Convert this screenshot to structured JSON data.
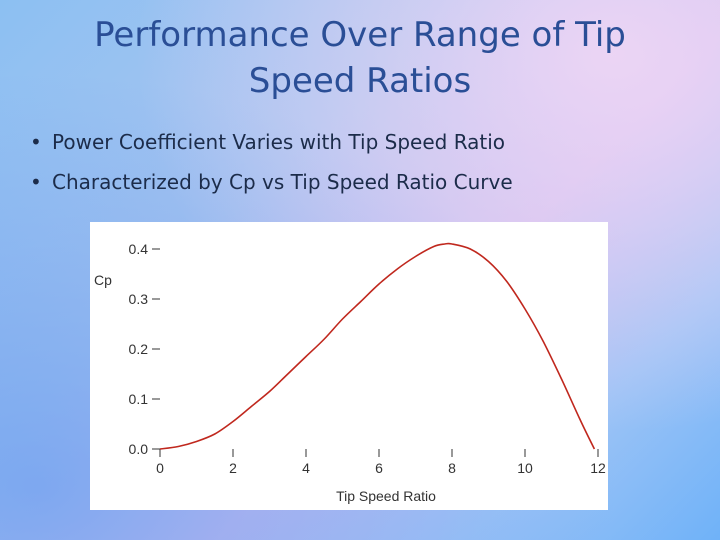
{
  "slide": {
    "title": "Performance Over Range of Tip Speed Ratios",
    "bullets": [
      "Power Coefficient Varies with Tip Speed Ratio",
      "Characterized by Cp vs Tip Speed Ratio Curve"
    ]
  },
  "chart_data": {
    "type": "line",
    "title": "",
    "xlabel": "Tip Speed Ratio",
    "ylabel": "Cp",
    "xlim": [
      0,
      12
    ],
    "ylim": [
      0,
      0.4
    ],
    "x_ticks": [
      "0",
      "2",
      "4",
      "6",
      "8",
      "10",
      "12"
    ],
    "y_ticks": [
      "0.0",
      "0.1",
      "0.2",
      "0.3",
      "0.4"
    ],
    "grid": false,
    "legend": "none",
    "series": [
      {
        "color": "#c0281e",
        "x": [
          0,
          0.5,
          1,
          1.5,
          2,
          2.5,
          3,
          3.5,
          4,
          4.5,
          5,
          5.5,
          6,
          6.5,
          7,
          7.5,
          7.8,
          8,
          8.5,
          9,
          9.5,
          10,
          10.5,
          11,
          11.5,
          11.9
        ],
        "y": [
          0.0,
          0.005,
          0.015,
          0.03,
          0.055,
          0.085,
          0.115,
          0.15,
          0.185,
          0.22,
          0.26,
          0.295,
          0.33,
          0.36,
          0.385,
          0.405,
          0.41,
          0.41,
          0.4,
          0.375,
          0.335,
          0.28,
          0.215,
          0.14,
          0.06,
          0.0
        ]
      }
    ]
  }
}
